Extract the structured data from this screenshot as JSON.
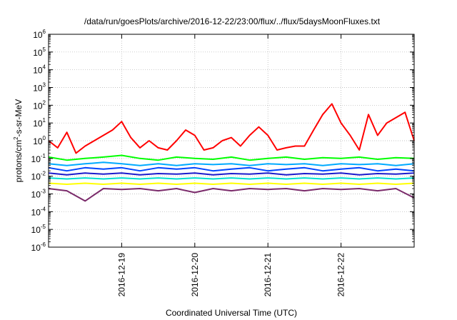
{
  "chart_data": {
    "type": "line",
    "title": "/data/run/goesPlots/archive/2016-12-22/23:00/flux/../flux/5daysMoonFluxes.txt",
    "xlabel": "Coordinated Universal Time (UTC)",
    "ylabel": {
      "base": "protons/cm",
      "sup": "2",
      "rest": "-s-sr-MeV"
    },
    "y_scale": "log",
    "ylim": [
      1e-06,
      1000000.0
    ],
    "y_ticks": [
      {
        "base": "10",
        "exp": "6"
      },
      {
        "base": "10",
        "exp": "5"
      },
      {
        "base": "10",
        "exp": "4"
      },
      {
        "base": "10",
        "exp": "3"
      },
      {
        "base": "10",
        "exp": "2"
      },
      {
        "base": "10",
        "exp": "1"
      },
      {
        "base": "10",
        "exp": "0"
      },
      {
        "base": "10",
        "exp": "-1"
      },
      {
        "base": "10",
        "exp": "-2"
      },
      {
        "base": "10",
        "exp": "-3"
      },
      {
        "base": "10",
        "exp": "-4"
      },
      {
        "base": "10",
        "exp": "-5"
      },
      {
        "base": "10",
        "exp": "-6"
      }
    ],
    "xlim": [
      "2016-12-18 00:00",
      "2016-12-23 00:00"
    ],
    "x_ticks": [
      "2016-12-19",
      "2016-12-20",
      "2016-12-21",
      "2016-12-22"
    ],
    "grid": true,
    "series": [
      {
        "color": "#ff0000",
        "x": [
          "2016-12-18 00:00",
          "2016-12-18 03:00",
          "2016-12-18 06:00",
          "2016-12-18 09:00",
          "2016-12-18 12:00",
          "2016-12-18 15:00",
          "2016-12-18 18:00",
          "2016-12-18 21:00",
          "2016-12-19 00:00",
          "2016-12-19 03:00",
          "2016-12-19 06:00",
          "2016-12-19 09:00",
          "2016-12-19 12:00",
          "2016-12-19 15:00",
          "2016-12-19 18:00",
          "2016-12-19 21:00",
          "2016-12-20 00:00",
          "2016-12-20 03:00",
          "2016-12-20 06:00",
          "2016-12-20 09:00",
          "2016-12-20 12:00",
          "2016-12-20 15:00",
          "2016-12-20 18:00",
          "2016-12-20 21:00",
          "2016-12-21 00:00",
          "2016-12-21 03:00",
          "2016-12-21 06:00",
          "2016-12-21 09:00",
          "2016-12-21 12:00",
          "2016-12-21 15:00",
          "2016-12-21 18:00",
          "2016-12-21 21:00",
          "2016-12-22 00:00",
          "2016-12-22 03:00",
          "2016-12-22 06:00",
          "2016-12-22 09:00",
          "2016-12-22 12:00",
          "2016-12-22 15:00",
          "2016-12-22 18:00",
          "2016-12-22 21:00",
          "2016-12-23 00:00"
        ],
        "y": [
          1.0,
          0.4,
          3.0,
          0.2,
          0.5,
          1.0,
          2.0,
          4.0,
          12.0,
          1.5,
          0.4,
          1.0,
          0.4,
          0.3,
          1.0,
          4.0,
          2.0,
          0.3,
          0.4,
          1.0,
          1.5,
          0.5,
          2.0,
          6.0,
          2.0,
          0.3,
          0.4,
          0.5,
          0.5,
          4.0,
          30.0,
          120.0,
          10.0,
          2.0,
          0.3,
          30.0,
          2.0,
          10.0,
          20.0,
          40.0,
          1.0
        ]
      },
      {
        "color": "#00ff00",
        "x": [
          "2016-12-18 00:00",
          "2016-12-18 06:00",
          "2016-12-18 12:00",
          "2016-12-18 18:00",
          "2016-12-19 00:00",
          "2016-12-19 06:00",
          "2016-12-19 12:00",
          "2016-12-19 18:00",
          "2016-12-20 00:00",
          "2016-12-20 06:00",
          "2016-12-20 12:00",
          "2016-12-20 18:00",
          "2016-12-21 00:00",
          "2016-12-21 06:00",
          "2016-12-21 12:00",
          "2016-12-21 18:00",
          "2016-12-22 00:00",
          "2016-12-22 06:00",
          "2016-12-22 12:00",
          "2016-12-22 18:00",
          "2016-12-23 00:00"
        ],
        "y": [
          0.12,
          0.08,
          0.1,
          0.12,
          0.15,
          0.1,
          0.08,
          0.12,
          0.1,
          0.09,
          0.12,
          0.08,
          0.1,
          0.12,
          0.09,
          0.11,
          0.1,
          0.12,
          0.09,
          0.11,
          0.1
        ]
      },
      {
        "color": "#00aaff",
        "x": [
          "2016-12-18 00:00",
          "2016-12-18 06:00",
          "2016-12-18 12:00",
          "2016-12-18 18:00",
          "2016-12-19 00:00",
          "2016-12-19 06:00",
          "2016-12-19 12:00",
          "2016-12-19 18:00",
          "2016-12-20 00:00",
          "2016-12-20 06:00",
          "2016-12-20 12:00",
          "2016-12-20 18:00",
          "2016-12-21 00:00",
          "2016-12-21 06:00",
          "2016-12-21 12:00",
          "2016-12-21 18:00",
          "2016-12-22 00:00",
          "2016-12-22 06:00",
          "2016-12-22 12:00",
          "2016-12-22 18:00",
          "2016-12-23 00:00"
        ],
        "y": [
          0.05,
          0.04,
          0.05,
          0.06,
          0.05,
          0.04,
          0.05,
          0.04,
          0.05,
          0.045,
          0.05,
          0.04,
          0.05,
          0.045,
          0.05,
          0.04,
          0.05,
          0.045,
          0.05,
          0.04,
          0.05
        ]
      },
      {
        "color": "#0044ff",
        "x": [
          "2016-12-18 00:00",
          "2016-12-18 06:00",
          "2016-12-18 12:00",
          "2016-12-18 18:00",
          "2016-12-19 00:00",
          "2016-12-19 06:00",
          "2016-12-19 12:00",
          "2016-12-19 18:00",
          "2016-12-20 00:00",
          "2016-12-20 06:00",
          "2016-12-20 12:00",
          "2016-12-20 18:00",
          "2016-12-21 00:00",
          "2016-12-21 06:00",
          "2016-12-21 12:00",
          "2016-12-21 18:00",
          "2016-12-22 00:00",
          "2016-12-22 06:00",
          "2016-12-22 12:00",
          "2016-12-22 18:00",
          "2016-12-23 00:00"
        ],
        "y": [
          0.03,
          0.02,
          0.03,
          0.025,
          0.03,
          0.02,
          0.03,
          0.025,
          0.03,
          0.02,
          0.025,
          0.03,
          0.02,
          0.025,
          0.03,
          0.02,
          0.025,
          0.03,
          0.02,
          0.025,
          0.02
        ]
      },
      {
        "color": "#1a1acc",
        "x": [
          "2016-12-18 00:00",
          "2016-12-18 06:00",
          "2016-12-18 12:00",
          "2016-12-18 18:00",
          "2016-12-19 00:00",
          "2016-12-19 06:00",
          "2016-12-19 12:00",
          "2016-12-19 18:00",
          "2016-12-20 00:00",
          "2016-12-20 06:00",
          "2016-12-20 12:00",
          "2016-12-20 18:00",
          "2016-12-21 00:00",
          "2016-12-21 06:00",
          "2016-12-21 12:00",
          "2016-12-21 18:00",
          "2016-12-22 00:00",
          "2016-12-22 06:00",
          "2016-12-22 12:00",
          "2016-12-22 18:00",
          "2016-12-23 00:00"
        ],
        "y": [
          0.015,
          0.012,
          0.015,
          0.013,
          0.015,
          0.012,
          0.014,
          0.013,
          0.015,
          0.012,
          0.014,
          0.013,
          0.015,
          0.012,
          0.014,
          0.013,
          0.015,
          0.012,
          0.014,
          0.013,
          0.015
        ]
      },
      {
        "color": "#00e0d0",
        "x": [
          "2016-12-18 00:00",
          "2016-12-18 06:00",
          "2016-12-18 12:00",
          "2016-12-18 18:00",
          "2016-12-19 00:00",
          "2016-12-19 06:00",
          "2016-12-19 12:00",
          "2016-12-19 18:00",
          "2016-12-20 00:00",
          "2016-12-20 06:00",
          "2016-12-20 12:00",
          "2016-12-20 18:00",
          "2016-12-21 00:00",
          "2016-12-21 06:00",
          "2016-12-21 12:00",
          "2016-12-21 18:00",
          "2016-12-22 00:00",
          "2016-12-22 06:00",
          "2016-12-22 12:00",
          "2016-12-22 18:00",
          "2016-12-23 00:00"
        ],
        "y": [
          0.008,
          0.007,
          0.008,
          0.007,
          0.008,
          0.007,
          0.008,
          0.007,
          0.008,
          0.007,
          0.008,
          0.007,
          0.008,
          0.007,
          0.008,
          0.007,
          0.008,
          0.007,
          0.008,
          0.007,
          0.008
        ]
      },
      {
        "color": "#ffff00",
        "x": [
          "2016-12-18 00:00",
          "2016-12-18 06:00",
          "2016-12-18 12:00",
          "2016-12-18 18:00",
          "2016-12-19 00:00",
          "2016-12-19 06:00",
          "2016-12-19 12:00",
          "2016-12-19 18:00",
          "2016-12-20 00:00",
          "2016-12-20 06:00",
          "2016-12-20 12:00",
          "2016-12-20 18:00",
          "2016-12-21 00:00",
          "2016-12-21 06:00",
          "2016-12-21 12:00",
          "2016-12-21 18:00",
          "2016-12-22 00:00",
          "2016-12-22 06:00",
          "2016-12-22 12:00",
          "2016-12-22 18:00",
          "2016-12-23 00:00"
        ],
        "y": [
          0.004,
          0.0035,
          0.004,
          0.0035,
          0.004,
          0.0035,
          0.004,
          0.0035,
          0.004,
          0.0035,
          0.004,
          0.0035,
          0.004,
          0.0035,
          0.004,
          0.0035,
          0.004,
          0.0035,
          0.004,
          0.0035,
          0.004
        ]
      },
      {
        "color": "#7a2a6a",
        "x": [
          "2016-12-18 00:00",
          "2016-12-18 06:00",
          "2016-12-18 12:00",
          "2016-12-18 18:00",
          "2016-12-19 00:00",
          "2016-12-19 06:00",
          "2016-12-19 12:00",
          "2016-12-19 18:00",
          "2016-12-20 00:00",
          "2016-12-20 06:00",
          "2016-12-20 12:00",
          "2016-12-20 18:00",
          "2016-12-21 00:00",
          "2016-12-21 06:00",
          "2016-12-21 12:00",
          "2016-12-21 18:00",
          "2016-12-22 00:00",
          "2016-12-22 06:00",
          "2016-12-22 12:00",
          "2016-12-22 18:00",
          "2016-12-23 00:00"
        ],
        "y": [
          0.002,
          0.0015,
          0.0004,
          0.002,
          0.0018,
          0.002,
          0.0015,
          0.002,
          0.0012,
          0.002,
          0.0015,
          0.002,
          0.0018,
          0.002,
          0.0015,
          0.002,
          0.0018,
          0.002,
          0.0015,
          0.002,
          0.0006
        ]
      }
    ]
  }
}
